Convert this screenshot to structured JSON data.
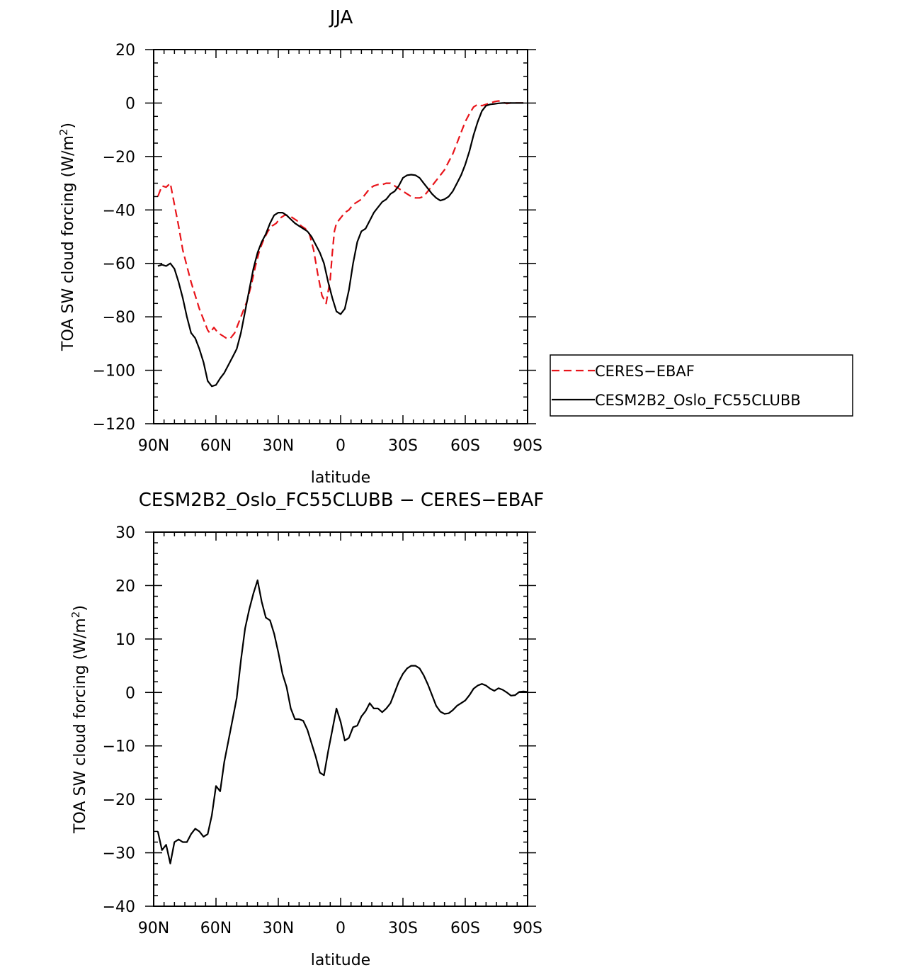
{
  "chart_data": [
    {
      "type": "line",
      "title": "JJA",
      "xlabel": "latitude",
      "ylabel": "TOA SW cloud forcing (W/m",
      "ylabel_sup": "2",
      "ylabel_close": ")",
      "xlim": [
        90,
        -90
      ],
      "ylim": [
        -120,
        20
      ],
      "x_ticks": [
        90,
        60,
        30,
        0,
        -30,
        -60,
        -90
      ],
      "x_tick_labels": [
        "90N",
        "60N",
        "30N",
        "0",
        "30S",
        "60S",
        "90S"
      ],
      "y_ticks": [
        20,
        0,
        -20,
        -40,
        -60,
        -80,
        -100,
        -120
      ],
      "y_tick_labels": [
        "20",
        "0",
        "−20",
        "−40",
        "−60",
        "−80",
        "−100",
        "−120"
      ],
      "legend": "right",
      "series": [
        {
          "name": "CERES−EBAF",
          "color": "#e8141a",
          "style": "dashed",
          "points": [
            [
              88,
              -35
            ],
            [
              86,
              -31
            ],
            [
              84,
              -31.5
            ],
            [
              82,
              -30
            ],
            [
              80,
              -38
            ],
            [
              78,
              -46
            ],
            [
              76,
              -55
            ],
            [
              74,
              -61
            ],
            [
              72,
              -67
            ],
            [
              70,
              -72
            ],
            [
              68,
              -77
            ],
            [
              66,
              -81
            ],
            [
              64,
              -85
            ],
            [
              63,
              -86
            ],
            [
              61,
              -84
            ],
            [
              59,
              -86
            ],
            [
              57,
              -87
            ],
            [
              55,
              -88
            ],
            [
              53,
              -88
            ],
            [
              51,
              -86
            ],
            [
              49,
              -82
            ],
            [
              47,
              -78
            ],
            [
              45,
              -74
            ],
            [
              43,
              -68
            ],
            [
              41,
              -61
            ],
            [
              39,
              -55
            ],
            [
              37,
              -51
            ],
            [
              35,
              -48
            ],
            [
              33,
              -46
            ],
            [
              31,
              -45
            ],
            [
              29,
              -43
            ],
            [
              27,
              -42
            ],
            [
              25,
              -42
            ],
            [
              23,
              -43
            ],
            [
              21,
              -44
            ],
            [
              19,
              -46
            ],
            [
              17,
              -47
            ],
            [
              15,
              -49
            ],
            [
              13,
              -55
            ],
            [
              11,
              -64
            ],
            [
              9,
              -72
            ],
            [
              7,
              -75
            ],
            [
              5,
              -66
            ],
            [
              4,
              -56
            ],
            [
              3,
              -48
            ],
            [
              2,
              -45
            ],
            [
              0,
              -43
            ],
            [
              -2,
              -41
            ],
            [
              -4,
              -40
            ],
            [
              -6,
              -38
            ],
            [
              -8,
              -37
            ],
            [
              -10,
              -36
            ],
            [
              -12,
              -34
            ],
            [
              -14,
              -32
            ],
            [
              -16,
              -31
            ],
            [
              -18,
              -30.5
            ],
            [
              -20,
              -30.5
            ],
            [
              -22,
              -30
            ],
            [
              -24,
              -30
            ],
            [
              -26,
              -31
            ],
            [
              -28,
              -32
            ],
            [
              -30,
              -33
            ],
            [
              -32,
              -34
            ],
            [
              -34,
              -35
            ],
            [
              -36,
              -35.5
            ],
            [
              -38,
              -35.5
            ],
            [
              -40,
              -35
            ],
            [
              -42,
              -33
            ],
            [
              -44,
              -31
            ],
            [
              -46,
              -29
            ],
            [
              -48,
              -27
            ],
            [
              -50,
              -25
            ],
            [
              -52,
              -22
            ],
            [
              -54,
              -19
            ],
            [
              -56,
              -15
            ],
            [
              -58,
              -11
            ],
            [
              -60,
              -7
            ],
            [
              -62,
              -4
            ],
            [
              -64,
              -1.5
            ],
            [
              -66,
              -0.5
            ],
            [
              -68,
              -1
            ],
            [
              -70,
              -0.5
            ],
            [
              -72,
              0
            ],
            [
              -74,
              0.5
            ],
            [
              -76,
              0.8
            ],
            [
              -78,
              0.3
            ],
            [
              -80,
              -0.2
            ],
            [
              -82,
              0
            ],
            [
              -84,
              0
            ],
            [
              -86,
              0
            ],
            [
              -88,
              0
            ]
          ]
        },
        {
          "name": "CESM2B2_Oslo_FC55CLUBB",
          "color": "#000000",
          "style": "solid",
          "points": [
            [
              88,
              -61
            ],
            [
              86,
              -60.5
            ],
            [
              84,
              -61
            ],
            [
              82,
              -60
            ],
            [
              80,
              -62
            ],
            [
              78,
              -67
            ],
            [
              76,
              -73
            ],
            [
              74,
              -80
            ],
            [
              72,
              -86
            ],
            [
              70,
              -88
            ],
            [
              68,
              -92
            ],
            [
              66,
              -97
            ],
            [
              64,
              -104
            ],
            [
              62,
              -106
            ],
            [
              60,
              -105.5
            ],
            [
              58,
              -103
            ],
            [
              56,
              -101
            ],
            [
              54,
              -98
            ],
            [
              52,
              -95
            ],
            [
              50,
              -92
            ],
            [
              48,
              -86
            ],
            [
              46,
              -78
            ],
            [
              44,
              -70
            ],
            [
              42,
              -62
            ],
            [
              40,
              -56
            ],
            [
              38,
              -52
            ],
            [
              36,
              -49
            ],
            [
              34,
              -45
            ],
            [
              32,
              -42
            ],
            [
              30,
              -41
            ],
            [
              28,
              -41
            ],
            [
              26,
              -42
            ],
            [
              24,
              -43.5
            ],
            [
              22,
              -45
            ],
            [
              20,
              -46
            ],
            [
              18,
              -47
            ],
            [
              16,
              -48
            ],
            [
              14,
              -50
            ],
            [
              12,
              -53
            ],
            [
              10,
              -56
            ],
            [
              8,
              -60
            ],
            [
              6,
              -67
            ],
            [
              4,
              -73
            ],
            [
              2,
              -78
            ],
            [
              0,
              -79
            ],
            [
              -2,
              -77
            ],
            [
              -4,
              -70
            ],
            [
              -6,
              -60
            ],
            [
              -8,
              -52
            ],
            [
              -10,
              -48
            ],
            [
              -12,
              -47
            ],
            [
              -14,
              -44
            ],
            [
              -16,
              -41
            ],
            [
              -18,
              -39
            ],
            [
              -20,
              -37
            ],
            [
              -22,
              -36
            ],
            [
              -24,
              -34
            ],
            [
              -26,
              -33
            ],
            [
              -28,
              -31
            ],
            [
              -30,
              -28
            ],
            [
              -32,
              -27
            ],
            [
              -34,
              -26.8
            ],
            [
              -36,
              -27
            ],
            [
              -38,
              -28
            ],
            [
              -40,
              -30
            ],
            [
              -42,
              -32
            ],
            [
              -44,
              -34
            ],
            [
              -46,
              -35.5
            ],
            [
              -48,
              -36.5
            ],
            [
              -50,
              -36
            ],
            [
              -52,
              -35
            ],
            [
              -54,
              -33
            ],
            [
              -56,
              -30
            ],
            [
              -58,
              -27
            ],
            [
              -60,
              -23
            ],
            [
              -62,
              -18
            ],
            [
              -64,
              -12
            ],
            [
              -66,
              -7
            ],
            [
              -68,
              -3
            ],
            [
              -70,
              -1
            ],
            [
              -72,
              -0.5
            ],
            [
              -74,
              -0.3
            ],
            [
              -76,
              -0.1
            ],
            [
              -78,
              0
            ],
            [
              -80,
              0
            ],
            [
              -84,
              0
            ],
            [
              -88,
              0
            ]
          ]
        }
      ]
    },
    {
      "type": "line",
      "title": "CESM2B2_Oslo_FC55CLUBB − CERES−EBAF",
      "xlabel": "latitude",
      "ylabel": "TOA SW cloud forcing (W/m",
      "ylabel_sup": "2",
      "ylabel_close": ")",
      "xlim": [
        90,
        -90
      ],
      "ylim": [
        -40,
        30
      ],
      "x_ticks": [
        90,
        60,
        30,
        0,
        -30,
        -60,
        -90
      ],
      "x_tick_labels": [
        "90N",
        "60N",
        "30N",
        "0",
        "30S",
        "60S",
        "90S"
      ],
      "y_ticks": [
        30,
        20,
        10,
        0,
        -10,
        -20,
        -30,
        -40
      ],
      "y_tick_labels": [
        "30",
        "20",
        "10",
        "0",
        "−10",
        "−20",
        "−30",
        "−40"
      ],
      "series": [
        {
          "color": "#000000",
          "style": "solid",
          "points": [
            [
              88,
              -26
            ],
            [
              86,
              -29.5
            ],
            [
              84,
              -28.5
            ],
            [
              82,
              -32
            ],
            [
              80,
              -28
            ],
            [
              78,
              -27.5
            ],
            [
              76,
              -28
            ],
            [
              74,
              -28
            ],
            [
              72,
              -26.5
            ],
            [
              70,
              -25.5
            ],
            [
              68,
              -26
            ],
            [
              66,
              -27
            ],
            [
              64,
              -26.5
            ],
            [
              62,
              -23
            ],
            [
              60,
              -17.5
            ],
            [
              58,
              -18.5
            ],
            [
              56,
              -13
            ],
            [
              54,
              -9
            ],
            [
              52,
              -5
            ],
            [
              50,
              -1
            ],
            [
              48,
              6
            ],
            [
              46,
              12
            ],
            [
              44,
              15.5
            ],
            [
              42,
              18.5
            ],
            [
              40,
              21
            ],
            [
              38,
              17
            ],
            [
              36,
              14
            ],
            [
              34,
              13.5
            ],
            [
              32,
              11
            ],
            [
              30,
              7.5
            ],
            [
              28,
              3.5
            ],
            [
              26,
              1
            ],
            [
              24,
              -3
            ],
            [
              22,
              -5
            ],
            [
              20,
              -5
            ],
            [
              18,
              -5.3
            ],
            [
              16,
              -7
            ],
            [
              14,
              -9.5
            ],
            [
              12,
              -12
            ],
            [
              10,
              -15
            ],
            [
              8,
              -15.5
            ],
            [
              6,
              -11
            ],
            [
              4,
              -7
            ],
            [
              2,
              -3
            ],
            [
              0,
              -5.5
            ],
            [
              -2,
              -9
            ],
            [
              -4,
              -8.5
            ],
            [
              -6,
              -6.5
            ],
            [
              -8,
              -6.2
            ],
            [
              -10,
              -4.5
            ],
            [
              -12,
              -3.5
            ],
            [
              -14,
              -2
            ],
            [
              -16,
              -3
            ],
            [
              -18,
              -3
            ],
            [
              -20,
              -3.7
            ],
            [
              -22,
              -3
            ],
            [
              -24,
              -2
            ],
            [
              -26,
              0
            ],
            [
              -28,
              2
            ],
            [
              -30,
              3.5
            ],
            [
              -32,
              4.5
            ],
            [
              -34,
              5
            ],
            [
              -36,
              5
            ],
            [
              -38,
              4.5
            ],
            [
              -40,
              3.2
            ],
            [
              -42,
              1.5
            ],
            [
              -44,
              -0.5
            ],
            [
              -46,
              -2.5
            ],
            [
              -48,
              -3.6
            ],
            [
              -50,
              -4
            ],
            [
              -52,
              -3.9
            ],
            [
              -54,
              -3.3
            ],
            [
              -56,
              -2.5
            ],
            [
              -58,
              -2
            ],
            [
              -60,
              -1.5
            ],
            [
              -62,
              -0.5
            ],
            [
              -64,
              0.7
            ],
            [
              -66,
              1.3
            ],
            [
              -68,
              1.6
            ],
            [
              -70,
              1.3
            ],
            [
              -72,
              0.7
            ],
            [
              -74,
              0.3
            ],
            [
              -76,
              0.8
            ],
            [
              -78,
              0.5
            ],
            [
              -80,
              0
            ],
            [
              -82,
              -0.6
            ],
            [
              -84,
              -0.5
            ],
            [
              -86,
              0.1
            ],
            [
              -88,
              0.2
            ],
            [
              -90,
              0.1
            ]
          ]
        }
      ]
    }
  ]
}
